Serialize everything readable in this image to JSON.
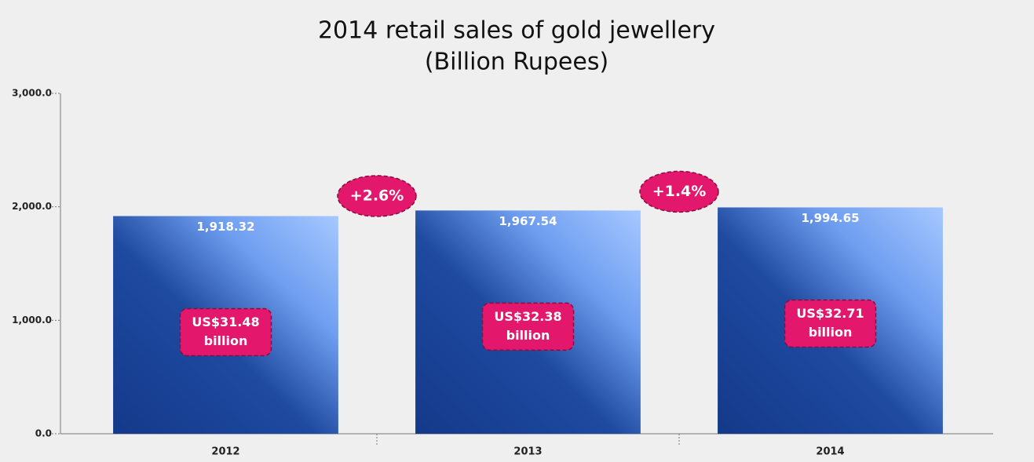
{
  "chart_data": {
    "type": "bar",
    "title": "2014 retail sales of gold jewellery",
    "subtitle": "(Billion Rupees)",
    "categories": [
      "2012",
      "2013",
      "2014"
    ],
    "values": [
      1918.32,
      1967.54,
      1994.65
    ],
    "value_labels": [
      "1,918.32",
      "1,967.54",
      "1,994.65"
    ],
    "color": "#1a3f8f",
    "ylim": [
      0,
      3000
    ],
    "yticks": [
      {
        "value": 0,
        "label": "0.0"
      },
      {
        "value": 1000,
        "label": "1,000.0"
      },
      {
        "value": 2000,
        "label": "2,000.0"
      },
      {
        "value": 3000,
        "label": "3,000.0"
      }
    ],
    "bar_annotations": [
      {
        "amount": "US$31.48",
        "unit": "billion"
      },
      {
        "amount": "US$32.38",
        "unit": "billion"
      },
      {
        "amount": "US$32.71",
        "unit": "billion"
      }
    ],
    "growth_labels": [
      "+2.6%",
      "+1.4%"
    ]
  }
}
